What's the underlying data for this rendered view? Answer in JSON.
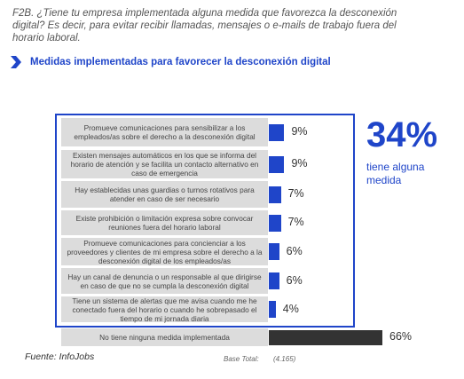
{
  "question": "F2B. ¿Tiene tu empresa implementada alguna medida que favorezca la desconexión digital? Es decir, para evitar recibir llamadas, mensajes o e-mails de trabajo fuera del horario laboral.",
  "subtitle": "Medidas implementadas para favorecer la desconexión digital",
  "highlight": {
    "value": "34%",
    "label": "tiene alguna medida"
  },
  "colors": {
    "accent": "#1f45c9",
    "bar_primary": "#1f45c9",
    "bar_none": "#333333",
    "label_bg": "#dcdcdc"
  },
  "footer": {
    "source": "Fuente: InfoJobs",
    "base_label": "Base Total:",
    "base_value": "(4.165)"
  },
  "chart_data": {
    "type": "bar",
    "orientation": "horizontal",
    "categories": [
      "Promueve comunicaciones para sensibilizar a los empleados/as sobre el derecho a la desconexión digital",
      "Existen mensajes automáticos en los que se informa del horario de atención y se facilita un contacto alternativo en caso de emergencia",
      "Hay establecidas unas guardias o turnos rotativos para atender en caso de ser necesario",
      "Existe prohibición o limitación expresa sobre convocar reuniones fuera del horario laboral",
      "Promueve comunicaciones para concienciar a los proveedores y clientes de mi empresa sobre el derecho a la desconexión digital de los empleados/as",
      "Hay un canal de denuncia o un responsable al que dirigirse en caso de que no se cumpla la desconexión digital",
      "Tiene un sistema de alertas que me avisa cuando me he conectado fuera del horario o cuando he sobrepasado el tiempo de mi jornada diaria",
      "No tiene ninguna medida implementada"
    ],
    "values": [
      9,
      9,
      7,
      7,
      6,
      6,
      4,
      66
    ],
    "value_labels": [
      "9%",
      "9%",
      "7%",
      "7%",
      "6%",
      "6%",
      "4%",
      "66%"
    ],
    "xlim": [
      0,
      66
    ]
  }
}
